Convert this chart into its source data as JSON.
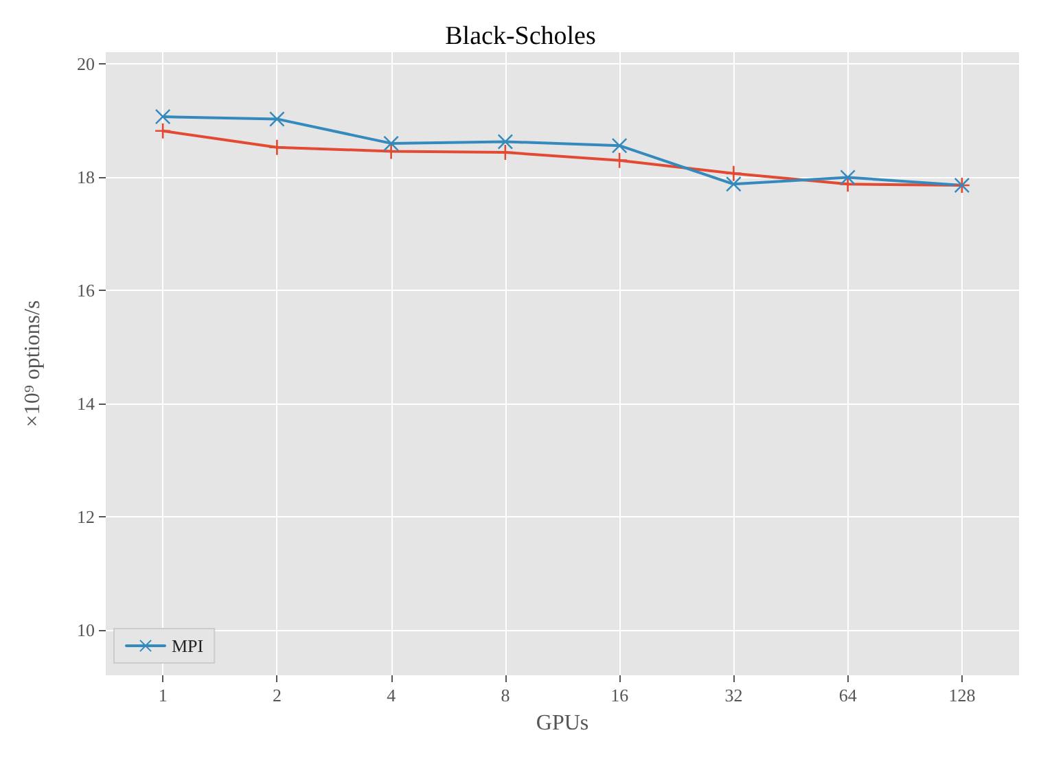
{
  "chart_data": {
    "type": "line",
    "title": "Black-Scholes",
    "xlabel": "GPUs",
    "ylabel": "×10⁹ options/s",
    "categories": [
      "1",
      "2",
      "4",
      "8",
      "16",
      "32",
      "64",
      "128"
    ],
    "series": [
      {
        "color": "#e24a33",
        "marker": "plus",
        "values": [
          18.81,
          18.52,
          18.45,
          18.43,
          18.29,
          18.06,
          17.87,
          17.85
        ]
      },
      {
        "name": "MPI",
        "color": "#348abd",
        "marker": "cross",
        "values": [
          19.06,
          19.02,
          18.59,
          18.62,
          18.55,
          17.87,
          17.99,
          17.85
        ]
      }
    ],
    "ylim": [
      9.2,
      20.2
    ],
    "yticks": [
      10,
      12,
      14,
      16,
      18,
      20
    ],
    "grid": true,
    "legend": "bottom left",
    "line_style": "solid"
  }
}
